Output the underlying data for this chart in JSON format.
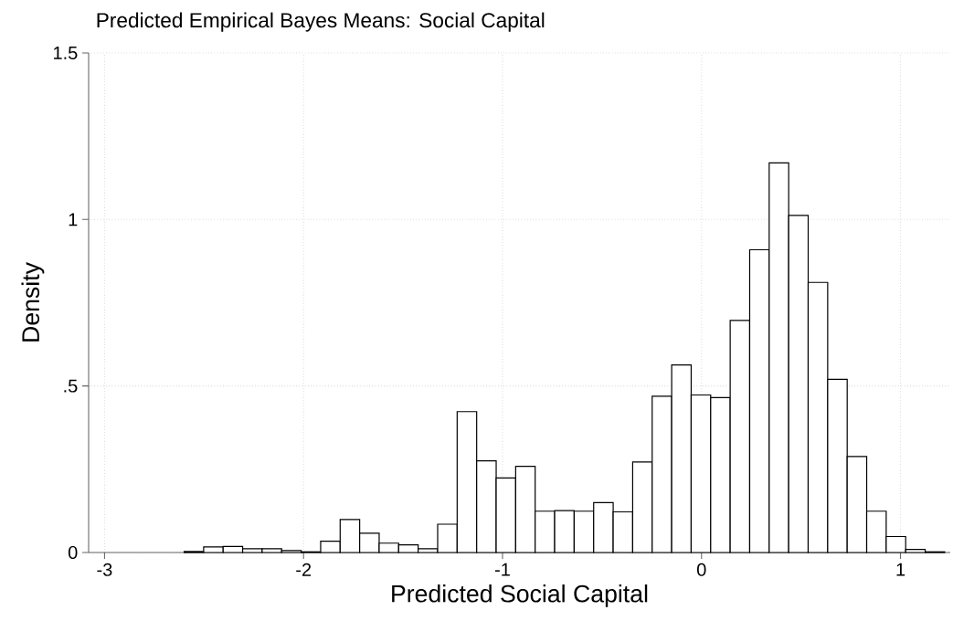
{
  "chart_data": {
    "type": "histogram",
    "title": "Predicted Empirical Bayes Means: Social Capital",
    "xlabel": "Predicted Social Capital",
    "ylabel": "Density",
    "bins": [
      -2.6,
      -2.502,
      -2.404,
      -2.306,
      -2.208,
      -2.11,
      -2.012,
      -1.914,
      -1.816,
      -1.718,
      -1.62,
      -1.522,
      -1.424,
      -1.326,
      -1.228,
      -1.13,
      -1.032,
      -0.934,
      -0.836,
      -0.738,
      -0.64,
      -0.542,
      -0.444,
      -0.346,
      -0.248,
      -0.15,
      -0.052,
      0.046,
      0.144,
      0.242,
      0.34,
      0.438,
      0.536,
      0.634,
      0.732,
      0.83,
      0.928,
      1.026,
      1.124,
      1.222
    ],
    "values": [
      0.003,
      0.017,
      0.018,
      0.011,
      0.011,
      0.006,
      0.002,
      0.034,
      0.099,
      0.058,
      0.028,
      0.023,
      0.011,
      0.085,
      0.423,
      0.275,
      0.224,
      0.259,
      0.124,
      0.126,
      0.124,
      0.15,
      0.122,
      0.272,
      0.469,
      0.563,
      0.473,
      0.465,
      0.697,
      0.909,
      1.17,
      1.012,
      0.811,
      0.52,
      0.288,
      0.124,
      0.048,
      0.009,
      0.002
    ],
    "color": "#ffffff",
    "xlim": [
      -3.08,
      1.25
    ],
    "ylim": [
      0,
      1.5
    ],
    "xticks": [
      -3,
      -2,
      -1,
      0,
      1
    ],
    "yticks": [
      0,
      {
        "value": 0.5,
        "label": ".5"
      },
      1,
      1.5
    ],
    "grid": true
  }
}
